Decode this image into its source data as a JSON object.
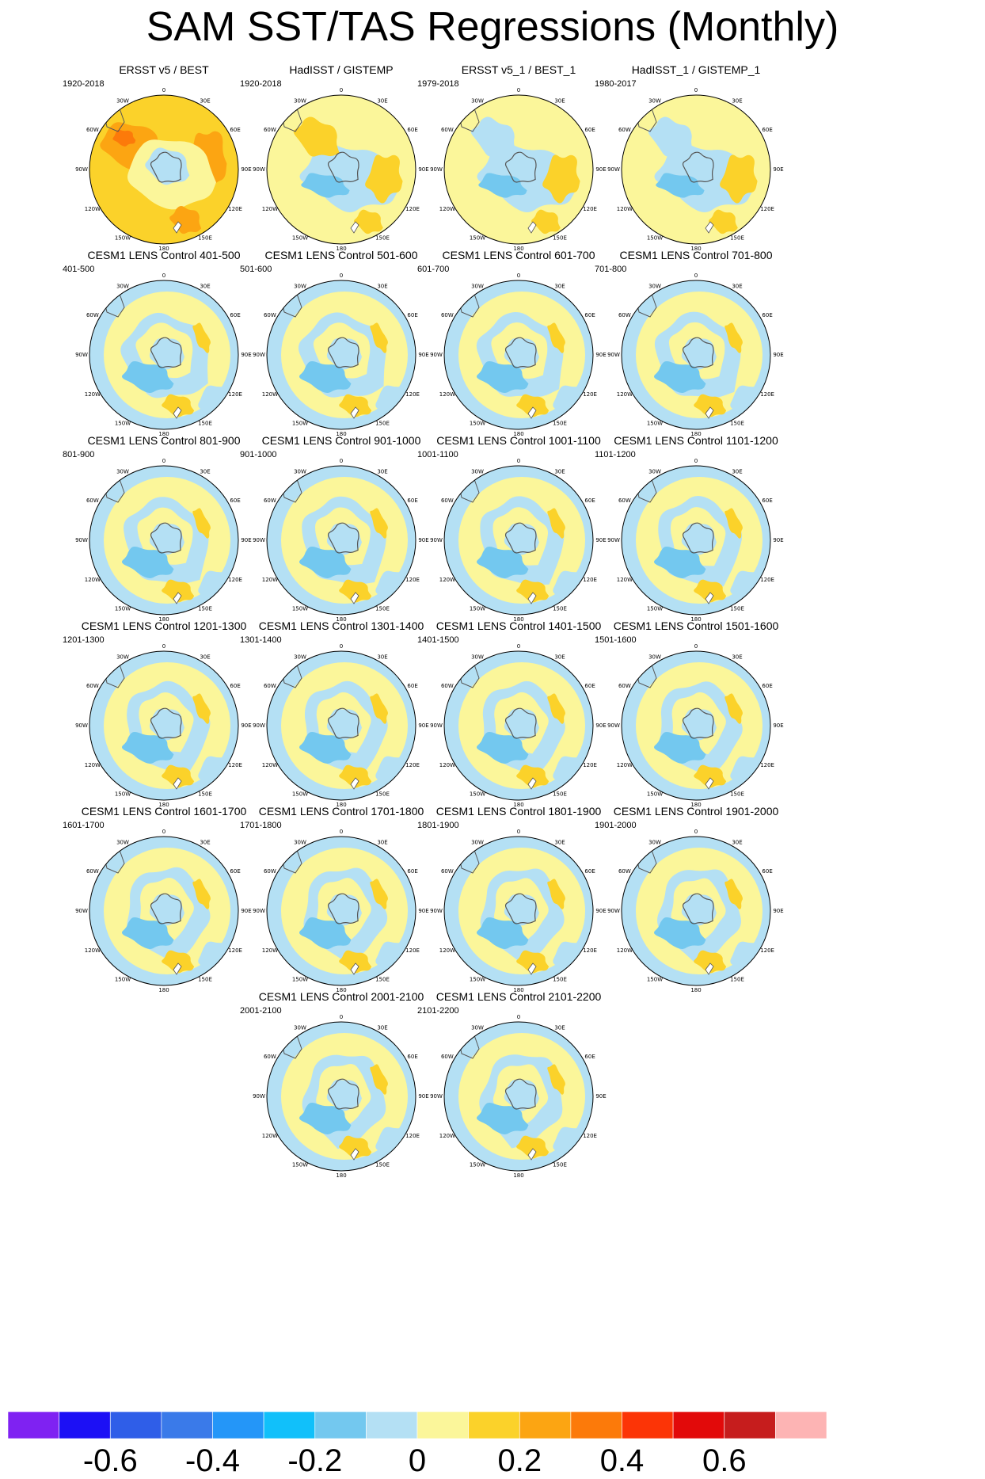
{
  "title": "SAM SST/TAS Regressions (Monthly)",
  "panels": [
    {
      "title": "ERSST v5 / BEST",
      "period": "1920-2018"
    },
    {
      "title": "HadISST / GISTEMP",
      "period": "1920-2018"
    },
    {
      "title": "ERSST v5_1 / BEST_1",
      "period": "1979-2018"
    },
    {
      "title": "HadISST_1 / GISTEMP_1",
      "period": "1980-2017"
    },
    {
      "title": "CESM1 LENS Control 401-500",
      "period": "401-500"
    },
    {
      "title": "CESM1 LENS Control 501-600",
      "period": "501-600"
    },
    {
      "title": "CESM1 LENS Control 601-700",
      "period": "601-700"
    },
    {
      "title": "CESM1 LENS Control 701-800",
      "period": "701-800"
    },
    {
      "title": "CESM1 LENS Control 801-900",
      "period": "801-900"
    },
    {
      "title": "CESM1 LENS Control 901-1000",
      "period": "901-1000"
    },
    {
      "title": "CESM1 LENS Control 1001-1100",
      "period": "1001-1100"
    },
    {
      "title": "CESM1 LENS Control 1101-1200",
      "period": "1101-1200"
    },
    {
      "title": "CESM1 LENS Control 1201-1300",
      "period": "1201-1300"
    },
    {
      "title": "CESM1 LENS Control 1301-1400",
      "period": "1301-1400"
    },
    {
      "title": "CESM1 LENS Control 1401-1500",
      "period": "1401-1500"
    },
    {
      "title": "CESM1 LENS Control 1501-1600",
      "period": "1501-1600"
    },
    {
      "title": "CESM1 LENS Control 1601-1700",
      "period": "1601-1700"
    },
    {
      "title": "CESM1 LENS Control 1701-1800",
      "period": "1701-1800"
    },
    {
      "title": "CESM1 LENS Control 1801-1900",
      "period": "1801-1900"
    },
    {
      "title": "CESM1 LENS Control 1901-2000",
      "period": "1901-2000"
    },
    {
      "title": "CESM1 LENS Control 2001-2100",
      "period": "2001-2100"
    },
    {
      "title": "CESM1 LENS Control 2101-2200",
      "period": "2101-2200"
    }
  ],
  "longitude_labels": [
    "0",
    "30E",
    "60E",
    "90E",
    "120E",
    "150E",
    "180",
    "150W",
    "120W",
    "90W",
    "60W",
    "30W"
  ],
  "colorbar": {
    "colors": [
      "#7f22f2",
      "#1c10f5",
      "#2f5ee8",
      "#3a7ae9",
      "#2496f8",
      "#11c0fa",
      "#73c8ef",
      "#b4e0f4",
      "#fbf69a",
      "#fbd22a",
      "#fca512",
      "#fc7a0a",
      "#fc3406",
      "#e20a0a",
      "#c61d1d",
      "#fdb4b4"
    ],
    "labels": [
      "-0.6",
      "-0.4",
      "-0.2",
      "0",
      "0.2",
      "0.4",
      "0.6"
    ]
  },
  "palette": {
    "ocean_light_blue": "#b4e0f4",
    "light_yellow": "#fbf69a",
    "yellow": "#fbd22a",
    "orange": "#fca512",
    "dark_orange": "#fc7a0a",
    "medium_blue": "#73c8ef",
    "coast": "#555555"
  }
}
